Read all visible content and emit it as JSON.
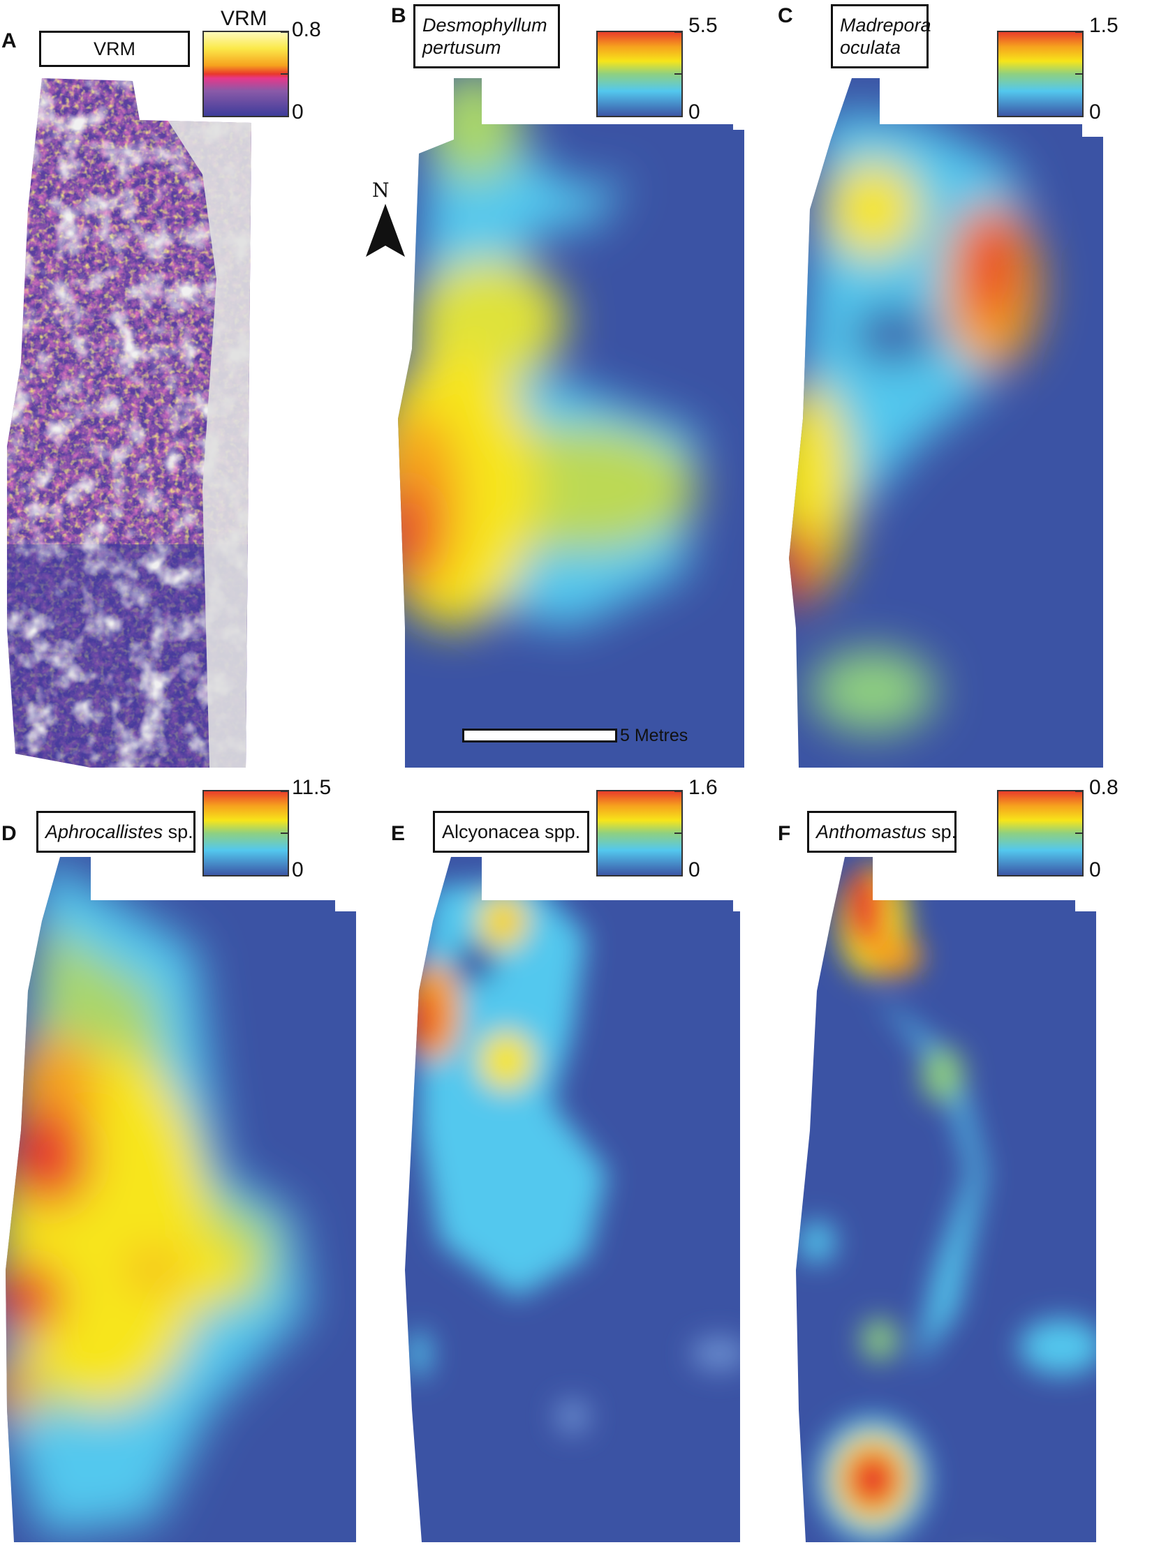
{
  "figure": {
    "panels": [
      {
        "letter": "A",
        "title": "VRM",
        "title_italic": "",
        "title_suffix": "",
        "colorbar_title": "VRM",
        "max": "0.8",
        "min": "0",
        "colormap": "vrm"
      },
      {
        "letter": "B",
        "title": "Desmophyllum",
        "title_line2": "pertusum",
        "title_italic": "all",
        "colorbar_title": "",
        "max": "5.5",
        "min": "0",
        "colormap": "rainbow"
      },
      {
        "letter": "C",
        "title": "Madrepora",
        "title_line2": "oculata",
        "title_italic": "all",
        "colorbar_title": "",
        "max": "1.5",
        "min": "0",
        "colormap": "rainbow"
      },
      {
        "letter": "D",
        "title_italic_part": "Aphrocallistes",
        "title_plain_part": " sp.",
        "colorbar_title": "",
        "max": "11.5",
        "min": "0",
        "colormap": "rainbow"
      },
      {
        "letter": "E",
        "title": "Alcyonacea spp.",
        "title_italic": "",
        "colorbar_title": "",
        "max": "1.6",
        "min": "0",
        "colormap": "rainbow"
      },
      {
        "letter": "F",
        "title_italic_part": "Anthomastus",
        "title_plain_part": " sp.",
        "colorbar_title": "",
        "max": "0.8",
        "min": "0",
        "colormap": "rainbow"
      }
    ],
    "north_label": "N",
    "scale_label": "5 Metres",
    "colors": {
      "background_low": "#3b53a4",
      "cyan": "#53c8ee",
      "yellow": "#f7e51a",
      "orange": "#f6a21e",
      "red": "#e9382b",
      "vrm_gray": "#e0e0e0",
      "vrm_purple": "#5b3fa0",
      "vrm_magenta": "#e6388a",
      "vrm_yellow": "#fff176"
    }
  }
}
